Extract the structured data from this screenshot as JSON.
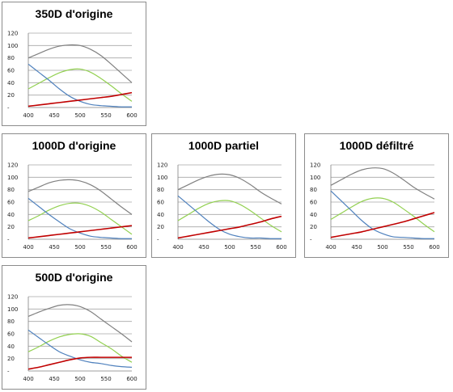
{
  "series_colors": {
    "gray": "#808080",
    "green": "#92d050",
    "blue": "#4f81bd",
    "red": "#c00000"
  },
  "chart_data": [
    {
      "type": "line",
      "title": "350D d'origine",
      "xlabel": "",
      "ylabel": "",
      "xlim": [
        400,
        600
      ],
      "ylim": [
        0,
        120
      ],
      "x_ticks": [
        "400",
        "450",
        "500",
        "550",
        "600"
      ],
      "y_ticks": [
        "-",
        "20",
        "40",
        "60",
        "80",
        "100",
        "120"
      ],
      "grid": true,
      "x": [
        400,
        420,
        440,
        460,
        480,
        500,
        520,
        540,
        560,
        580,
        600
      ],
      "series": [
        {
          "color": "gray",
          "values": [
            80,
            87,
            94,
            99,
            101,
            100,
            94,
            84,
            70,
            55,
            40
          ]
        },
        {
          "color": "green",
          "values": [
            30,
            39,
            48,
            56,
            61,
            62,
            57,
            47,
            35,
            22,
            10
          ]
        },
        {
          "color": "blue",
          "values": [
            70,
            57,
            44,
            30,
            18,
            10,
            5,
            3,
            2,
            1,
            1
          ]
        },
        {
          "color": "red",
          "values": [
            2,
            4,
            6,
            8,
            10,
            12,
            14,
            16,
            18,
            21,
            24
          ]
        }
      ]
    },
    {
      "type": "line",
      "title": "1000D d'origine",
      "xlabel": "",
      "ylabel": "",
      "xlim": [
        400,
        600
      ],
      "ylim": [
        0,
        120
      ],
      "x_ticks": [
        "400",
        "450",
        "500",
        "550",
        "600"
      ],
      "y_ticks": [
        "-",
        "20",
        "40",
        "60",
        "80",
        "100",
        "120"
      ],
      "grid": true,
      "x": [
        400,
        420,
        440,
        460,
        480,
        500,
        520,
        540,
        560,
        580,
        600
      ],
      "series": [
        {
          "color": "gray",
          "values": [
            77,
            84,
            91,
            95,
            96,
            94,
            88,
            78,
            65,
            52,
            40
          ]
        },
        {
          "color": "green",
          "values": [
            30,
            38,
            47,
            54,
            58,
            58,
            53,
            44,
            32,
            20,
            8
          ]
        },
        {
          "color": "blue",
          "values": [
            66,
            53,
            40,
            28,
            17,
            10,
            5,
            3,
            2,
            1,
            1
          ]
        },
        {
          "color": "red",
          "values": [
            2,
            4,
            6,
            8,
            10,
            12,
            14,
            16,
            18,
            20,
            22
          ]
        }
      ]
    },
    {
      "type": "line",
      "title": "1000D partiel",
      "xlabel": "",
      "ylabel": "",
      "xlim": [
        400,
        600
      ],
      "ylim": [
        0,
        120
      ],
      "x_ticks": [
        "400",
        "450",
        "500",
        "550",
        "600"
      ],
      "y_ticks": [
        "-",
        "20",
        "40",
        "60",
        "80",
        "100",
        "120"
      ],
      "grid": true,
      "x": [
        400,
        420,
        440,
        460,
        480,
        500,
        520,
        540,
        560,
        580,
        600
      ],
      "series": [
        {
          "color": "gray",
          "values": [
            80,
            88,
            96,
            102,
            105,
            104,
            98,
            88,
            76,
            66,
            57
          ]
        },
        {
          "color": "green",
          "values": [
            30,
            40,
            50,
            58,
            62,
            62,
            56,
            46,
            34,
            22,
            12
          ]
        },
        {
          "color": "blue",
          "values": [
            70,
            56,
            42,
            28,
            16,
            8,
            4,
            2,
            2,
            1,
            1
          ]
        },
        {
          "color": "red",
          "values": [
            2,
            5,
            8,
            11,
            14,
            17,
            20,
            24,
            28,
            33,
            37
          ]
        }
      ]
    },
    {
      "type": "line",
      "title": "1000D défiltré",
      "xlabel": "",
      "ylabel": "",
      "xlim": [
        400,
        600
      ],
      "ylim": [
        0,
        120
      ],
      "x_ticks": [
        "400",
        "450",
        "500",
        "550",
        "600"
      ],
      "y_ticks": [
        "-",
        "20",
        "40",
        "60",
        "80",
        "100",
        "120"
      ],
      "grid": true,
      "x": [
        400,
        420,
        440,
        460,
        480,
        500,
        520,
        540,
        560,
        580,
        600
      ],
      "series": [
        {
          "color": "gray",
          "values": [
            87,
            96,
            105,
            112,
            115,
            114,
            107,
            96,
            84,
            74,
            65
          ]
        },
        {
          "color": "green",
          "values": [
            32,
            42,
            52,
            61,
            66,
            66,
            60,
            49,
            37,
            24,
            12
          ]
        },
        {
          "color": "blue",
          "values": [
            78,
            62,
            46,
            30,
            17,
            9,
            4,
            3,
            2,
            1,
            1
          ]
        },
        {
          "color": "red",
          "values": [
            3,
            6,
            9,
            12,
            16,
            20,
            24,
            28,
            33,
            38,
            43
          ]
        }
      ]
    },
    {
      "type": "line",
      "title": "500D d'origine",
      "xlabel": "",
      "ylabel": "",
      "xlim": [
        400,
        600
      ],
      "ylim": [
        0,
        120
      ],
      "x_ticks": [
        "400",
        "450",
        "500",
        "550",
        "600"
      ],
      "y_ticks": [
        "-",
        "20",
        "40",
        "60",
        "80",
        "100",
        "120"
      ],
      "grid": true,
      "x": [
        400,
        420,
        440,
        460,
        480,
        500,
        520,
        540,
        560,
        580,
        600
      ],
      "series": [
        {
          "color": "gray",
          "values": [
            88,
            95,
            101,
            106,
            107,
            104,
            96,
            84,
            72,
            60,
            47
          ]
        },
        {
          "color": "green",
          "values": [
            31,
            39,
            48,
            55,
            59,
            60,
            56,
            46,
            36,
            24,
            14
          ]
        },
        {
          "color": "blue",
          "values": [
            66,
            54,
            42,
            31,
            24,
            18,
            14,
            12,
            9,
            7,
            6
          ]
        },
        {
          "color": "red",
          "values": [
            3,
            6,
            10,
            14,
            18,
            21,
            22,
            22,
            22,
            22,
            22
          ]
        }
      ]
    }
  ]
}
